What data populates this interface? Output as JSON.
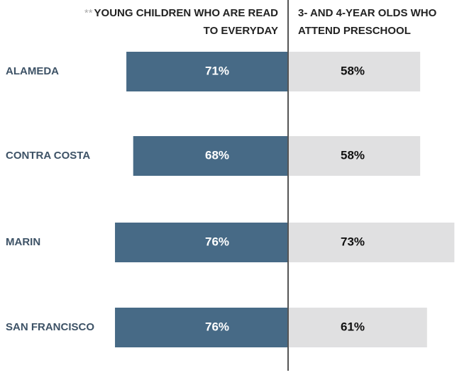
{
  "chart_data": {
    "type": "bar",
    "footnote_marker": "**",
    "categories": [
      "ALAMEDA",
      "CONTRA COSTA",
      "MARIN",
      "SAN FRANCISCO"
    ],
    "series": [
      {
        "name": "YOUNG CHILDREN WHO ARE READ TO EVERYDAY",
        "color": "#476a86",
        "values": [
          71,
          68,
          76,
          76
        ],
        "value_labels": [
          "71%",
          "68%",
          "76%",
          "76%"
        ]
      },
      {
        "name": "3- AND 4-YEAR OLDS WHO ATTEND PRESCHOOL",
        "color": "#e0e0e1",
        "values": [
          58,
          58,
          73,
          61
        ],
        "value_labels": [
          "58%",
          "58%",
          "73%",
          "61%"
        ]
      }
    ]
  }
}
